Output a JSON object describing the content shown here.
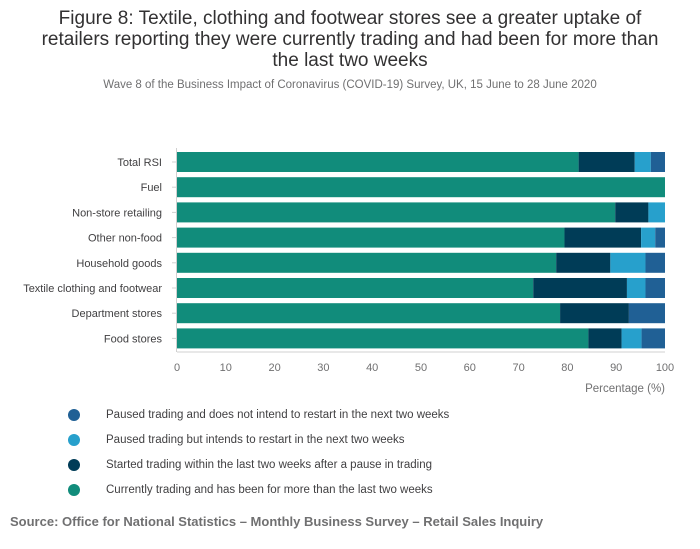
{
  "header": {
    "title_lines": [
      "Figure 8: Textile, clothing and footwear stores see a greater uptake of",
      "retailers reporting they were currently trading and had been for more than",
      "the last two weeks"
    ],
    "subtitle": "Wave 8 of the Business Impact of Coronavirus (COVID-19) Survey, UK, 15 June to 28 June 2020"
  },
  "chart_data": {
    "type": "bar",
    "orientation": "horizontal",
    "stacked": true,
    "categories": [
      "Total RSI",
      "Fuel",
      "Non-store retailing",
      "Other non-food",
      "Household goods",
      "Textile clothing and footwear",
      "Department stores",
      "Food stores"
    ],
    "series": [
      {
        "name": "Currently trading and has been for more than the last two weeks",
        "color": "#118c7b",
        "values": [
          82.3,
          100,
          89.8,
          79.4,
          77.7,
          73.0,
          78.5,
          84.3
        ]
      },
      {
        "name": "Started trading within the last two weeks after a pause in trading",
        "color": "#003c57",
        "values": [
          11.5,
          0,
          6.8,
          15.7,
          11.1,
          19.2,
          14.1,
          6.8
        ]
      },
      {
        "name": "Paused trading but intends to restart in the next two weeks",
        "color": "#27a0cc",
        "values": [
          3.3,
          0,
          3.4,
          2.9,
          7.2,
          3.8,
          0,
          4.1
        ]
      },
      {
        "name": "Paused trading and does not intend to restart in the next two weeks",
        "color": "#206095",
        "values": [
          2.9,
          0,
          0,
          2.0,
          4.0,
          4.0,
          7.4,
          4.8
        ]
      }
    ],
    "xlim": [
      0,
      100
    ],
    "xticks": [
      "0",
      "10",
      "20",
      "30",
      "40",
      "50",
      "60",
      "70",
      "80",
      "90",
      "100"
    ],
    "xlabel": "Percentage (%)",
    "ylabel": "",
    "legend_position": "bottom"
  },
  "legend": {
    "order": [
      3,
      2,
      1,
      0
    ]
  },
  "footer": {
    "source": "Source: Office for National Statistics – Monthly Business Survey – Retail Sales Inquiry"
  }
}
